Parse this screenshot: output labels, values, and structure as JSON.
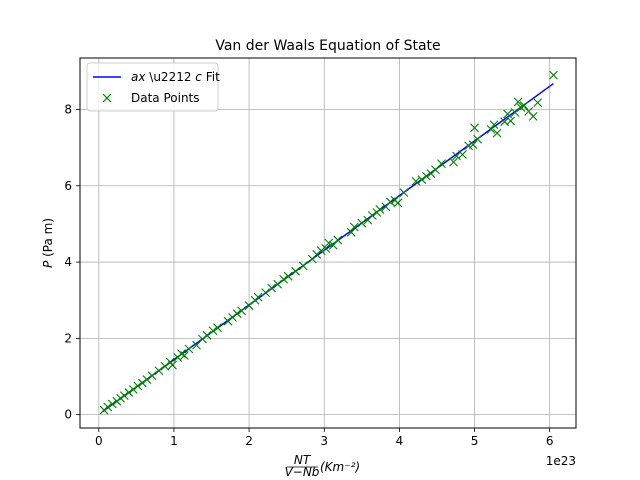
{
  "chart_data": {
    "type": "scatter",
    "title": "Van der Waals Equation of State",
    "xlabel": {
      "fraction_numerator": "NT",
      "fraction_denominator": "V−Nb",
      "unit": "(Km⁻²)"
    },
    "ylabel": "P (Pa m)",
    "x_offset_text": "1e23",
    "xlim": [
      -0.25,
      6.35
    ],
    "ylim": [
      -0.35,
      9.35
    ],
    "xticks": [
      0,
      1,
      2,
      3,
      4,
      5,
      6
    ],
    "yticks": [
      0,
      2,
      4,
      6,
      8
    ],
    "grid": true,
    "legend_position": "upper-left",
    "series": [
      {
        "name": "ax − c Fit",
        "kind": "line",
        "color": "#0000ff",
        "x": [
          0.05,
          6.05
        ],
        "y": [
          0.08,
          8.68
        ]
      },
      {
        "name": "Data Points",
        "kind": "scatter",
        "marker": "x",
        "color": "#008000",
        "x": [
          0.07,
          0.12,
          0.18,
          0.24,
          0.29,
          0.34,
          0.4,
          0.46,
          0.52,
          0.58,
          0.64,
          0.71,
          0.8,
          0.88,
          0.95,
          0.98,
          1.05,
          1.1,
          1.14,
          1.2,
          1.3,
          1.38,
          1.44,
          1.52,
          1.58,
          1.72,
          1.78,
          1.84,
          1.9,
          2.0,
          2.08,
          2.12,
          2.22,
          2.3,
          2.38,
          2.46,
          2.52,
          2.62,
          2.72,
          2.84,
          2.9,
          2.96,
          3.02,
          3.06,
          3.12,
          3.18,
          3.36,
          3.4,
          3.5,
          3.58,
          3.64,
          3.7,
          3.74,
          3.82,
          3.88,
          3.94,
          3.98,
          4.06,
          4.22,
          4.3,
          4.36,
          4.42,
          4.48,
          4.56,
          4.72,
          4.76,
          4.84,
          4.92,
          4.98,
          5.0,
          5.04,
          5.22,
          5.26,
          5.3,
          5.4,
          5.44,
          5.48,
          5.54,
          5.58,
          5.62,
          5.66,
          5.72,
          5.78,
          5.84,
          6.05
        ],
        "y": [
          0.12,
          0.2,
          0.28,
          0.35,
          0.43,
          0.5,
          0.58,
          0.66,
          0.75,
          0.83,
          0.92,
          1.02,
          1.15,
          1.27,
          1.38,
          1.3,
          1.5,
          1.6,
          1.55,
          1.72,
          1.82,
          1.98,
          2.08,
          2.2,
          2.28,
          2.45,
          2.55,
          2.65,
          2.72,
          2.86,
          3.0,
          3.08,
          3.2,
          3.32,
          3.42,
          3.55,
          3.63,
          3.76,
          3.9,
          4.08,
          4.2,
          4.3,
          4.36,
          4.5,
          4.44,
          4.58,
          4.78,
          4.92,
          5.02,
          5.1,
          5.22,
          5.3,
          5.38,
          5.45,
          5.58,
          5.62,
          5.55,
          5.82,
          6.12,
          6.16,
          6.25,
          6.32,
          6.42,
          6.58,
          6.62,
          6.78,
          6.82,
          7.05,
          7.08,
          7.52,
          7.22,
          7.48,
          7.6,
          7.38,
          7.68,
          7.88,
          7.7,
          7.92,
          8.2,
          8.05,
          8.1,
          7.95,
          7.82,
          8.18,
          8.9
        ]
      }
    ]
  }
}
